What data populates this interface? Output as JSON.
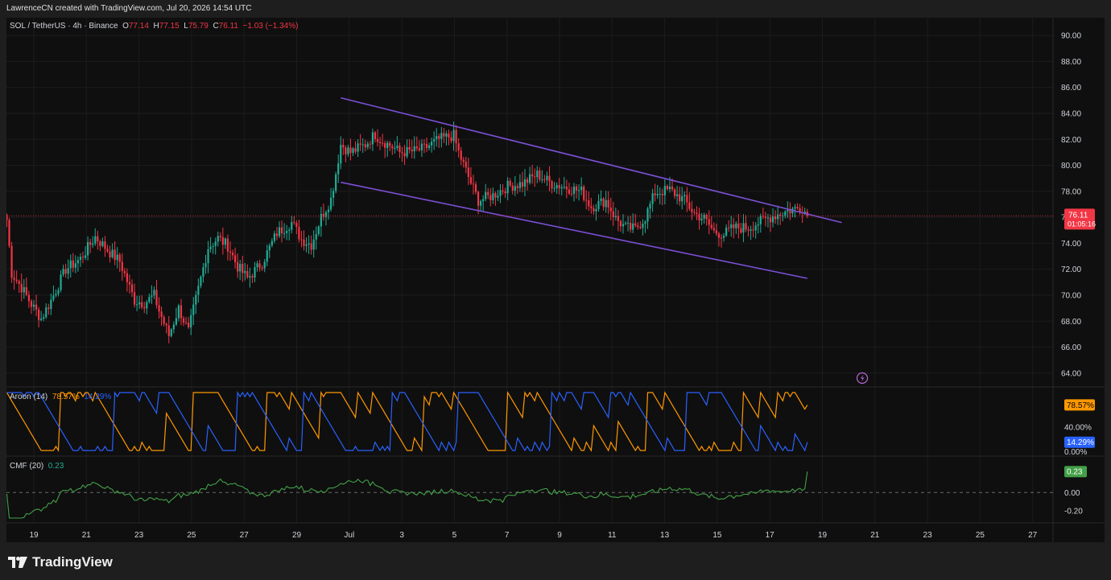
{
  "header": {
    "credit": "LawrenceCN created with TradingView.com, Jul 20, 2026 14:54 UTC"
  },
  "legend": {
    "symbol": "SOL / TetherUS · 4h · Binance",
    "open_label": "O",
    "open": "77.14",
    "high_label": "H",
    "high": "77.15",
    "low_label": "L",
    "low": "75.79",
    "close_label": "C",
    "close": "76.11",
    "change": "−1.03 (−1.34%)"
  },
  "price_badge": {
    "price": "76.11",
    "countdown": "01:05:16"
  },
  "aroon": {
    "label": "Aroon (14)",
    "up": "78.57%",
    "down": "14.29%",
    "up_badge": "78.57%",
    "down_badge": "14.29%"
  },
  "cmf": {
    "label": "CMF (20)",
    "value": "0.23",
    "badge": "0.23"
  },
  "branding": {
    "name": "TradingView"
  },
  "colors": {
    "bull": "#22ab94",
    "bear": "#f23645",
    "channel": "#7b4fd6",
    "aroon_up": "#ff9800",
    "aroon_down": "#2962ff",
    "cmf": "#43a047",
    "background": "#0f0f0f",
    "axis_text": "#d1d4dc"
  },
  "chart_data": {
    "type": "candlestick",
    "symbol": "SOL / TetherUS",
    "interval": "4h",
    "exchange": "Binance",
    "y_axis": {
      "ticks": [
        "90.00",
        "88.00",
        "86.00",
        "84.00",
        "82.00",
        "80.00",
        "78.00",
        "76.00",
        "74.00",
        "72.00",
        "70.00",
        "68.00",
        "66.00",
        "64.00"
      ],
      "range": [
        63,
        91
      ]
    },
    "x_axis": {
      "ticks": [
        "19",
        "21",
        "23",
        "25",
        "27",
        "29",
        "Jul",
        "3",
        "5",
        "7",
        "9",
        "11",
        "13",
        "15",
        "17",
        "19",
        "21",
        "23",
        "25",
        "27"
      ]
    },
    "last_price": 76.11,
    "price_anchors": [
      [
        0,
        75.8
      ],
      [
        2,
        71.7
      ],
      [
        6,
        70.6
      ],
      [
        10,
        69.3
      ],
      [
        14,
        68.2
      ],
      [
        18,
        69.6
      ],
      [
        24,
        72.0
      ],
      [
        30,
        72.8
      ],
      [
        36,
        74.5
      ],
      [
        42,
        73.3
      ],
      [
        46,
        72.6
      ],
      [
        52,
        69.6
      ],
      [
        56,
        69.4
      ],
      [
        60,
        70.0
      ],
      [
        62,
        68.8
      ],
      [
        66,
        66.9
      ],
      [
        70,
        69.0
      ],
      [
        74,
        67.2
      ],
      [
        76,
        68.9
      ],
      [
        82,
        73.7
      ],
      [
        86,
        74.4
      ],
      [
        90,
        73.8
      ],
      [
        94,
        72.2
      ],
      [
        98,
        71.3
      ],
      [
        104,
        72.5
      ],
      [
        110,
        74.8
      ],
      [
        116,
        75.6
      ],
      [
        120,
        74.3
      ],
      [
        124,
        73.9
      ],
      [
        128,
        76.0
      ],
      [
        132,
        77.4
      ],
      [
        134,
        79.4
      ],
      [
        136,
        81.6
      ],
      [
        140,
        81.0
      ],
      [
        146,
        81.6
      ],
      [
        150,
        82.4
      ],
      [
        152,
        82.0
      ],
      [
        158,
        81.3
      ],
      [
        160,
        81.0
      ],
      [
        166,
        81.1
      ],
      [
        170,
        81.3
      ],
      [
        176,
        82.0
      ],
      [
        182,
        82.3
      ],
      [
        184,
        81.0
      ],
      [
        188,
        79.1
      ],
      [
        192,
        77.3
      ],
      [
        198,
        77.7
      ],
      [
        204,
        78.4
      ],
      [
        210,
        78.6
      ],
      [
        216,
        79.3
      ],
      [
        222,
        78.6
      ],
      [
        228,
        78.3
      ],
      [
        234,
        78.0
      ],
      [
        238,
        76.8
      ],
      [
        244,
        77.3
      ],
      [
        248,
        75.9
      ],
      [
        252,
        75.2
      ],
      [
        256,
        75.1
      ],
      [
        260,
        76.0
      ],
      [
        264,
        77.9
      ],
      [
        270,
        78.1
      ],
      [
        276,
        77.3
      ],
      [
        280,
        76.3
      ],
      [
        284,
        75.9
      ],
      [
        288,
        74.9
      ],
      [
        292,
        74.7
      ],
      [
        296,
        75.2
      ],
      [
        302,
        75.2
      ],
      [
        306,
        75.6
      ],
      [
        312,
        76.1
      ],
      [
        318,
        76.5
      ],
      [
        324,
        76.8
      ],
      [
        326,
        76.1
      ]
    ],
    "channel": {
      "upper": [
        [
          136,
          85.2
        ],
        [
          340,
          75.6
        ]
      ],
      "lower": [
        [
          136,
          78.7
        ],
        [
          326,
          71.3
        ]
      ]
    },
    "indicators": {
      "aroon": {
        "period": 14,
        "up": 78.57,
        "down": 14.29,
        "ticks": [
          "40.00%",
          "0.00%"
        ]
      },
      "cmf": {
        "period": 20,
        "value": 0.23,
        "ticks": [
          "0.00",
          "-0.20"
        ]
      }
    }
  }
}
